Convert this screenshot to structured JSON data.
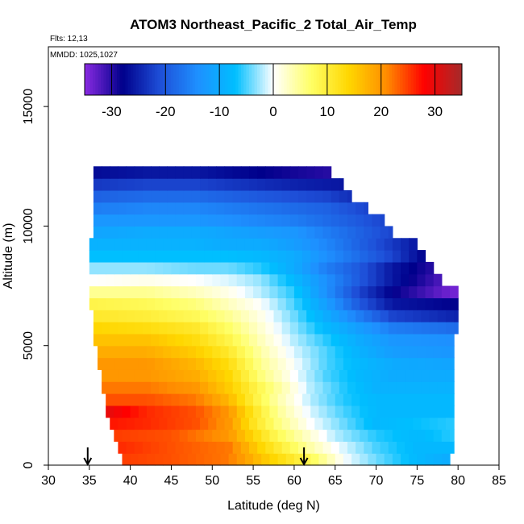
{
  "chart_data": {
    "type": "heatmap",
    "title": "ATOM3 Northeast_Pacific_2 Total_Air_Temp",
    "annotations": [
      "Flts: 12,13",
      "MMDD: 1025,1027"
    ],
    "xlabel": "Latitude (deg N)",
    "ylabel": "Altitude (m)",
    "xlim": [
      30,
      85
    ],
    "ylim": [
      0,
      17500
    ],
    "x_ticks": [
      30,
      35,
      40,
      45,
      50,
      55,
      60,
      65,
      70,
      75,
      80,
      85
    ],
    "y_ticks": [
      0,
      5000,
      10000,
      15000
    ],
    "colorbar": {
      "range": [
        -35,
        35
      ],
      "ticks": [
        -30,
        -20,
        -10,
        0,
        10,
        20,
        30
      ],
      "colors": [
        "#8a2be2",
        "#00008b",
        "#1e4fd8",
        "#1e90ff",
        "#00bfff",
        "#ffffff",
        "#ffff66",
        "#ffd700",
        "#ff8c00",
        "#ff0000",
        "#a52a2a"
      ]
    },
    "markers": [
      {
        "type": "arrow-down",
        "x": 34.8,
        "y": 0
      },
      {
        "type": "arrow-down",
        "x": 61.2,
        "y": 0
      }
    ],
    "altitude_band_m": 500,
    "lat_step_deg": 1,
    "latitude_coverage": [
      {
        "alt_min": 0,
        "alt_max": 500,
        "lat_min": 39,
        "lat_max": 79
      },
      {
        "alt_min": 500,
        "alt_max": 1000,
        "lat_min": 38.5,
        "lat_max": 79.5
      },
      {
        "alt_min": 1000,
        "alt_max": 1500,
        "lat_min": 38,
        "lat_max": 79.5
      },
      {
        "alt_min": 1500,
        "alt_max": 2000,
        "lat_min": 37.5,
        "lat_max": 79.5
      },
      {
        "alt_min": 2000,
        "alt_max": 3000,
        "lat_min": 37,
        "lat_max": 79.5
      },
      {
        "alt_min": 3000,
        "alt_max": 4000,
        "lat_min": 36.5,
        "lat_max": 79.5
      },
      {
        "alt_min": 4000,
        "alt_max": 5000,
        "lat_min": 36,
        "lat_max": 79.5
      },
      {
        "alt_min": 5000,
        "alt_max": 5500,
        "lat_min": 35.5,
        "lat_max": 79.5
      },
      {
        "alt_min": 5500,
        "alt_max": 6500,
        "lat_min": 35.5,
        "lat_max": 80
      },
      {
        "alt_min": 6500,
        "alt_max": 7500,
        "lat_min": 35,
        "lat_max": 80
      },
      {
        "alt_min": 7500,
        "alt_max": 8000,
        "lat_min": 35,
        "lat_max": 78
      },
      {
        "alt_min": 8000,
        "alt_max": 8500,
        "lat_min": 35,
        "lat_max": 77
      },
      {
        "alt_min": 8500,
        "alt_max": 9000,
        "lat_min": 35,
        "lat_max": 76
      },
      {
        "alt_min": 9000,
        "alt_max": 9500,
        "lat_min": 35,
        "lat_max": 75
      },
      {
        "alt_min": 9500,
        "alt_max": 10000,
        "lat_min": 35.5,
        "lat_max": 72
      },
      {
        "alt_min": 10000,
        "alt_max": 10500,
        "lat_min": 35.5,
        "lat_max": 71
      },
      {
        "alt_min": 10500,
        "alt_max": 11000,
        "lat_min": 35.5,
        "lat_max": 69
      },
      {
        "alt_min": 11000,
        "alt_max": 11500,
        "lat_min": 35.5,
        "lat_max": 67
      },
      {
        "alt_min": 11500,
        "alt_max": 12000,
        "lat_min": 35.5,
        "lat_max": 66
      },
      {
        "alt_min": 12000,
        "alt_max": 12500,
        "lat_min": 35.5,
        "lat_max": 64.5
      }
    ],
    "temperature_profile": [
      {
        "alt": 250,
        "t_at_lat": [
          [
            39,
            25
          ],
          [
            45,
            24
          ],
          [
            52,
            22
          ],
          [
            56,
            16
          ],
          [
            59,
            12
          ],
          [
            62,
            8
          ],
          [
            64,
            4
          ],
          [
            66,
            0
          ],
          [
            70,
            -4
          ],
          [
            75,
            -8
          ],
          [
            79,
            -10
          ]
        ]
      },
      {
        "alt": 750,
        "t_at_lat": [
          [
            38.5,
            26
          ],
          [
            45,
            24
          ],
          [
            52,
            22
          ],
          [
            56,
            14
          ],
          [
            59,
            9
          ],
          [
            62,
            4
          ],
          [
            65,
            0
          ],
          [
            70,
            -5
          ],
          [
            75,
            -8
          ],
          [
            79,
            -8
          ]
        ]
      },
      {
        "alt": 1250,
        "t_at_lat": [
          [
            38,
            25
          ],
          [
            45,
            24
          ],
          [
            52,
            20
          ],
          [
            55,
            14
          ],
          [
            58,
            8
          ],
          [
            62,
            2
          ],
          [
            65,
            -2
          ],
          [
            70,
            -6
          ],
          [
            75,
            -8
          ],
          [
            79,
            -6
          ]
        ]
      },
      {
        "alt": 1750,
        "t_at_lat": [
          [
            37.5,
            27
          ],
          [
            42,
            26
          ],
          [
            48,
            24
          ],
          [
            52,
            20
          ],
          [
            55,
            12
          ],
          [
            58,
            6
          ],
          [
            62,
            0
          ],
          [
            66,
            -4
          ],
          [
            70,
            -8
          ],
          [
            79,
            -6
          ]
        ]
      },
      {
        "alt": 2250,
        "t_at_lat": [
          [
            37,
            30
          ],
          [
            42,
            26
          ],
          [
            48,
            24
          ],
          [
            52,
            20
          ],
          [
            55,
            12
          ],
          [
            58,
            5
          ],
          [
            62,
            -1
          ],
          [
            66,
            -5
          ],
          [
            70,
            -8
          ],
          [
            79,
            -8
          ]
        ]
      },
      {
        "alt": 2750,
        "t_at_lat": [
          [
            37,
            24
          ],
          [
            42,
            24
          ],
          [
            48,
            22
          ],
          [
            52,
            17
          ],
          [
            55,
            10
          ],
          [
            58,
            4
          ],
          [
            62,
            -2
          ],
          [
            66,
            -6
          ],
          [
            70,
            -8
          ],
          [
            79,
            -8
          ]
        ]
      },
      {
        "alt": 3250,
        "t_at_lat": [
          [
            36.5,
            22
          ],
          [
            42,
            22
          ],
          [
            48,
            20
          ],
          [
            52,
            15
          ],
          [
            56,
            8
          ],
          [
            59,
            3
          ],
          [
            62,
            -2
          ],
          [
            66,
            -6
          ],
          [
            70,
            -9
          ],
          [
            79,
            -9
          ]
        ]
      },
      {
        "alt": 3750,
        "t_at_lat": [
          [
            36.5,
            20
          ],
          [
            42,
            20
          ],
          [
            48,
            18
          ],
          [
            52,
            14
          ],
          [
            56,
            6
          ],
          [
            60,
            0
          ],
          [
            64,
            -5
          ],
          [
            68,
            -8
          ],
          [
            72,
            -10
          ],
          [
            79,
            -10
          ]
        ]
      },
      {
        "alt": 4250,
        "t_at_lat": [
          [
            36,
            20
          ],
          [
            42,
            20
          ],
          [
            48,
            17
          ],
          [
            52,
            13
          ],
          [
            56,
            5
          ],
          [
            60,
            0
          ],
          [
            64,
            -5
          ],
          [
            68,
            -8
          ],
          [
            72,
            -10
          ],
          [
            79,
            -11
          ]
        ]
      },
      {
        "alt": 4750,
        "t_at_lat": [
          [
            36,
            18
          ],
          [
            42,
            18
          ],
          [
            48,
            15
          ],
          [
            52,
            11
          ],
          [
            56,
            4
          ],
          [
            60,
            -1
          ],
          [
            64,
            -5
          ],
          [
            68,
            -9
          ],
          [
            72,
            -12
          ],
          [
            79,
            -13
          ]
        ]
      },
      {
        "alt": 5250,
        "t_at_lat": [
          [
            35.5,
            16
          ],
          [
            42,
            16
          ],
          [
            48,
            13
          ],
          [
            52,
            9
          ],
          [
            56,
            3
          ],
          [
            60,
            -2
          ],
          [
            64,
            -6
          ],
          [
            68,
            -10
          ],
          [
            72,
            -13
          ],
          [
            79,
            -14
          ]
        ]
      },
      {
        "alt": 5750,
        "t_at_lat": [
          [
            35.5,
            14
          ],
          [
            42,
            13
          ],
          [
            48,
            11
          ],
          [
            52,
            7
          ],
          [
            56,
            2
          ],
          [
            60,
            -3
          ],
          [
            64,
            -8
          ],
          [
            68,
            -12
          ],
          [
            72,
            -16
          ],
          [
            80,
            -18
          ]
        ]
      },
      {
        "alt": 6250,
        "t_at_lat": [
          [
            35.5,
            11
          ],
          [
            42,
            10
          ],
          [
            48,
            8
          ],
          [
            52,
            5
          ],
          [
            56,
            1
          ],
          [
            60,
            -4
          ],
          [
            64,
            -10
          ],
          [
            68,
            -16
          ],
          [
            72,
            -22
          ],
          [
            80,
            -25
          ]
        ]
      },
      {
        "alt": 6750,
        "t_at_lat": [
          [
            35,
            9
          ],
          [
            42,
            8
          ],
          [
            48,
            6
          ],
          [
            52,
            3
          ],
          [
            56,
            0
          ],
          [
            60,
            -5
          ],
          [
            64,
            -12
          ],
          [
            68,
            -20
          ],
          [
            72,
            -26
          ],
          [
            80,
            -28
          ]
        ]
      },
      {
        "alt": 7250,
        "t_at_lat": [
          [
            35,
            5
          ],
          [
            42,
            5
          ],
          [
            48,
            3
          ],
          [
            52,
            1
          ],
          [
            56,
            -2
          ],
          [
            60,
            -6
          ],
          [
            64,
            -14
          ],
          [
            68,
            -22
          ],
          [
            72,
            -28
          ],
          [
            78,
            -33
          ],
          [
            80,
            -34
          ]
        ]
      },
      {
        "alt": 7750,
        "t_at_lat": [
          [
            35,
            0
          ],
          [
            42,
            1
          ],
          [
            48,
            0
          ],
          [
            52,
            -1
          ],
          [
            56,
            -3
          ],
          [
            60,
            -8
          ],
          [
            64,
            -14
          ],
          [
            68,
            -20
          ],
          [
            72,
            -26
          ],
          [
            78,
            -32
          ]
        ]
      },
      {
        "alt": 8250,
        "t_at_lat": [
          [
            35,
            -3
          ],
          [
            42,
            -3
          ],
          [
            48,
            -4
          ],
          [
            52,
            -4
          ],
          [
            56,
            -6
          ],
          [
            60,
            -10
          ],
          [
            64,
            -16
          ],
          [
            68,
            -20
          ],
          [
            72,
            -26
          ],
          [
            77,
            -30
          ]
        ]
      },
      {
        "alt": 8750,
        "t_at_lat": [
          [
            35,
            -7
          ],
          [
            42,
            -7
          ],
          [
            48,
            -7
          ],
          [
            52,
            -7
          ],
          [
            56,
            -8
          ],
          [
            60,
            -10
          ],
          [
            64,
            -14
          ],
          [
            68,
            -18
          ],
          [
            72,
            -22
          ],
          [
            76,
            -28
          ]
        ]
      },
      {
        "alt": 9250,
        "t_at_lat": [
          [
            35,
            -9
          ],
          [
            42,
            -9
          ],
          [
            48,
            -9
          ],
          [
            52,
            -10
          ],
          [
            56,
            -10
          ],
          [
            60,
            -12
          ],
          [
            64,
            -15
          ],
          [
            68,
            -19
          ],
          [
            72,
            -23
          ],
          [
            75,
            -26
          ]
        ]
      },
      {
        "alt": 9750,
        "t_at_lat": [
          [
            35.5,
            -11
          ],
          [
            42,
            -10
          ],
          [
            48,
            -10
          ],
          [
            52,
            -11
          ],
          [
            56,
            -12
          ],
          [
            60,
            -13
          ],
          [
            64,
            -16
          ],
          [
            68,
            -19
          ],
          [
            72,
            -22
          ]
        ]
      },
      {
        "alt": 10250,
        "t_at_lat": [
          [
            35.5,
            -13
          ],
          [
            42,
            -13
          ],
          [
            48,
            -13
          ],
          [
            52,
            -14
          ],
          [
            56,
            -15
          ],
          [
            60,
            -16
          ],
          [
            64,
            -18
          ],
          [
            68,
            -20
          ],
          [
            71,
            -22
          ]
        ]
      },
      {
        "alt": 10750,
        "t_at_lat": [
          [
            35.5,
            -16
          ],
          [
            42,
            -15
          ],
          [
            48,
            -15
          ],
          [
            52,
            -16
          ],
          [
            56,
            -17
          ],
          [
            60,
            -18
          ],
          [
            64,
            -19
          ],
          [
            69,
            -22
          ]
        ]
      },
      {
        "alt": 11250,
        "t_at_lat": [
          [
            35.5,
            -19
          ],
          [
            42,
            -18
          ],
          [
            48,
            -18
          ],
          [
            52,
            -19
          ],
          [
            56,
            -20
          ],
          [
            60,
            -21
          ],
          [
            64,
            -22
          ],
          [
            67,
            -24
          ]
        ]
      },
      {
        "alt": 11750,
        "t_at_lat": [
          [
            35.5,
            -23
          ],
          [
            42,
            -22
          ],
          [
            48,
            -22
          ],
          [
            52,
            -23
          ],
          [
            56,
            -24
          ],
          [
            60,
            -25
          ],
          [
            66,
            -26
          ]
        ]
      },
      {
        "alt": 12250,
        "t_at_lat": [
          [
            35.5,
            -27
          ],
          [
            42,
            -26
          ],
          [
            48,
            -26
          ],
          [
            52,
            -27
          ],
          [
            56,
            -28
          ],
          [
            60,
            -29
          ],
          [
            64.5,
            -30
          ]
        ]
      }
    ]
  }
}
